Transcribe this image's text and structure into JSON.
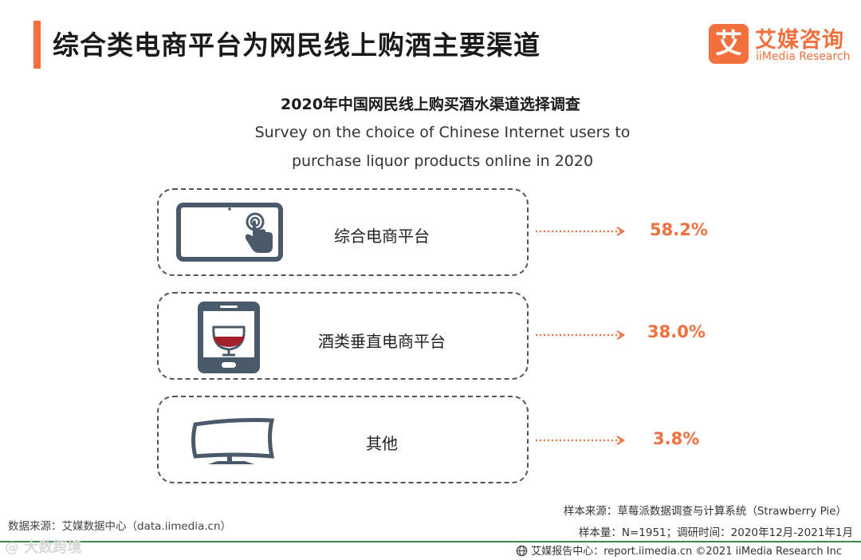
{
  "header": {
    "title": "综合类电商平台为网民线上购酒主要渠道",
    "brand_mark": "艾",
    "brand_cn": "艾媒咨询",
    "brand_en": "iiMedia Research"
  },
  "colors": {
    "accent": "#f2703e",
    "icon": "#4a5a6a",
    "wine": "#a3202a",
    "dashed_border": "#555555",
    "footer_line": "#3a8a4a"
  },
  "chart_data": {
    "type": "bar",
    "title": "2020年中国网民线上购买酒水渠道选择调查",
    "subtitle_lines": [
      "Survey on the choice of Chinese Internet users to",
      "purchase liquor products online in 2020"
    ],
    "unit": "%",
    "categories": [
      "综合电商平台",
      "酒类垂直电商平台",
      "其他"
    ],
    "values": [
      58.2,
      38.0,
      3.8
    ],
    "value_labels": [
      "58.2%",
      "38.0%",
      "3.8%"
    ],
    "icons": [
      "tablet-touch-icon",
      "phone-wine-glass-icon",
      "curved-monitor-icon"
    ]
  },
  "footer": {
    "source_left": "数据来源：艾媒数据中心（data.iimedia.cn）",
    "sample_source": "样本来源：草莓派数据调查与计算系统（Strawberry Pie）",
    "sample_info": "样本量：N=1951；调研时间：2020年12月-2021年1月",
    "bottom": "艾媒报告中心：report.iimedia.cn  ©2021  iiMedia Research  Inc",
    "watermark": "@ 大数跨境"
  }
}
